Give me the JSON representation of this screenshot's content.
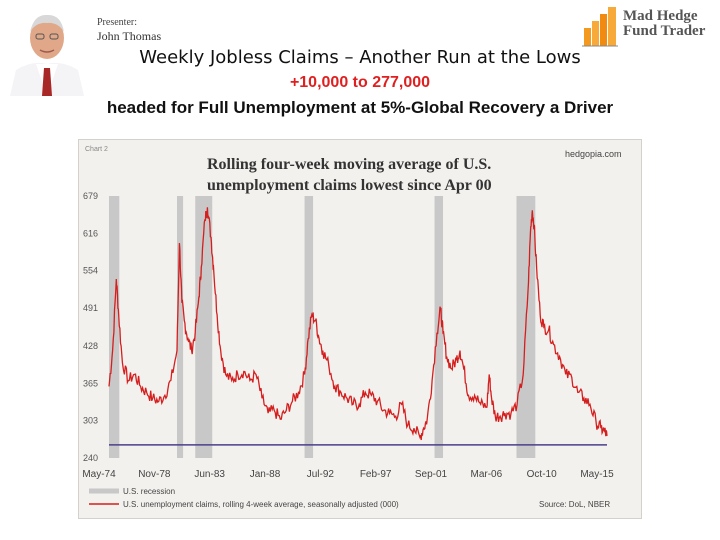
{
  "header": {
    "presenter_label": "Presenter:",
    "presenter_name": "John Thomas",
    "logo_line1": "Mad Hedge",
    "logo_line2": "Fund Trader"
  },
  "slide": {
    "title": "Weekly Jobless Claims – Another Run at the Lows",
    "subtitle": "+10,000 to 277,000",
    "caption": "headed for Full Unemployment at 5%-Global Recovery a Driver"
  },
  "colors": {
    "series": "#d41f1f",
    "recession": "#c8c8c8",
    "baseline": "#4a3f8c",
    "subtitle": "#e02020"
  },
  "chart_data": {
    "type": "line",
    "corner_label": "Chart 2",
    "title_line1": "Rolling four-week moving average of U.S.",
    "title_line2": "unemployment claims lowest since Apr 00",
    "source_site": "hedgopia.com",
    "source": "Source: DoL, NBER",
    "y_ticks": [
      "679",
      "616",
      "554",
      "491",
      "428",
      "365",
      "303",
      "240"
    ],
    "ylim": [
      240,
      679
    ],
    "x_ticks": [
      "May-74",
      "Nov-78",
      "Jun-83",
      "Jan-88",
      "Jul-92",
      "Feb-97",
      "Sep-01",
      "Mar-06",
      "Oct-10",
      "May-15"
    ],
    "xlim": [
      1974.4,
      2015.4
    ],
    "legend": [
      {
        "label": "U.S. recession",
        "kind": "band"
      },
      {
        "label": "U.S. unemployment claims, rolling 4-week average, seasonally adjusted (000)",
        "kind": "line"
      }
    ],
    "recessions": [
      [
        1974.4,
        1975.25
      ],
      [
        1980.0,
        1980.5
      ],
      [
        1981.5,
        1982.9
      ],
      [
        1990.5,
        1991.2
      ],
      [
        2001.2,
        2001.9
      ],
      [
        2007.95,
        2009.5
      ]
    ],
    "reference_line": 262,
    "series": [
      {
        "x": [
          1974.4,
          1974.7,
          1975.0,
          1975.2,
          1975.5,
          1976.0,
          1976.5,
          1977.0,
          1977.5,
          1978.0,
          1978.5,
          1979.0,
          1979.5,
          1980.0,
          1980.2,
          1980.4,
          1980.6,
          1980.9,
          1981.2,
          1981.5,
          1981.8,
          1982.0,
          1982.3,
          1982.5,
          1982.8,
          1983.0,
          1983.3,
          1983.6,
          1984.0,
          1984.5,
          1985.0,
          1985.5,
          1986.0,
          1986.5,
          1987.0,
          1987.5,
          1988.0,
          1988.5,
          1989.0,
          1989.5,
          1990.0,
          1990.5,
          1990.8,
          1991.1,
          1991.4,
          1991.7,
          1992.0,
          1992.5,
          1993.0,
          1993.5,
          1994.0,
          1994.5,
          1995.0,
          1995.5,
          1996.0,
          1996.5,
          1997.0,
          1997.5,
          1998.0,
          1998.5,
          1999.0,
          1999.5,
          2000.0,
          2000.3,
          2000.6,
          2001.0,
          2001.4,
          2001.7,
          2001.9,
          2002.2,
          2002.6,
          2003.0,
          2003.3,
          2003.6,
          2004.0,
          2004.5,
          2005.0,
          2005.5,
          2005.7,
          2005.9,
          2006.2,
          2006.6,
          2007.0,
          2007.5,
          2008.0,
          2008.5,
          2008.9,
          2009.1,
          2009.25,
          2009.4,
          2009.6,
          2009.9,
          2010.2,
          2010.6,
          2011.0,
          2011.5,
          2012.0,
          2012.5,
          2013.0,
          2013.5,
          2014.0,
          2014.5,
          2014.9,
          2015.2,
          2015.4
        ],
        "values": [
          360,
          420,
          540,
          480,
          400,
          370,
          380,
          360,
          350,
          340,
          335,
          345,
          370,
          420,
          600,
          500,
          470,
          440,
          420,
          450,
          510,
          560,
          640,
          660,
          610,
          560,
          480,
          420,
          380,
          370,
          380,
          385,
          370,
          380,
          340,
          315,
          320,
          305,
          320,
          335,
          350,
          380,
          440,
          480,
          470,
          440,
          420,
          395,
          360,
          350,
          340,
          330,
          330,
          350,
          345,
          335,
          320,
          315,
          310,
          330,
          295,
          290,
          275,
          290,
          305,
          370,
          450,
          490,
          450,
          410,
          390,
          405,
          420,
          390,
          345,
          345,
          330,
          325,
          380,
          340,
          310,
          310,
          315,
          315,
          330,
          380,
          520,
          620,
          655,
          630,
          560,
          480,
          460,
          455,
          430,
          410,
          380,
          375,
          350,
          340,
          330,
          300,
          290,
          285,
          277
        ]
      }
    ]
  }
}
